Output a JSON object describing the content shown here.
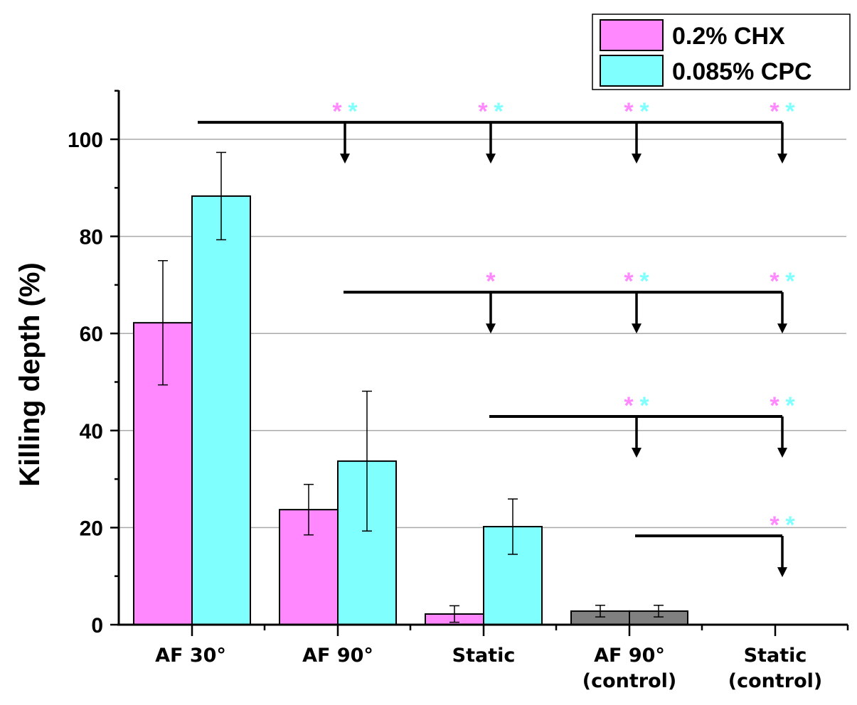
{
  "chart_data": {
    "type": "bar",
    "title": "",
    "xlabel": "",
    "ylabel": "Killing depth (%)",
    "ylim": [
      0,
      110
    ],
    "yticks": [
      0,
      20,
      40,
      60,
      80,
      100
    ],
    "grid": true,
    "legend_position": "top-right",
    "categories": [
      [
        "AF 30°"
      ],
      [
        "AF 90°"
      ],
      [
        "Static"
      ],
      [
        "AF 90°",
        "(control)"
      ],
      [
        "Static",
        "(control)"
      ]
    ],
    "series": [
      {
        "name": "0.2% CHX",
        "color": "#ff88ff",
        "values": [
          62.2,
          23.7,
          2.2,
          2.8,
          0
        ],
        "errors": [
          12.8,
          5.2,
          1.7,
          1.2,
          0
        ]
      },
      {
        "name": "0.085% CPC",
        "color": "#80ffff",
        "values": [
          88.3,
          33.7,
          20.2,
          2.8,
          0
        ],
        "errors": [
          9.0,
          14.4,
          5.7,
          1.2,
          0
        ]
      }
    ],
    "control_color": "#808080",
    "significance": [
      {
        "from": 0,
        "level": 103.5,
        "tip": 95,
        "targets": [
          {
            "group": 1,
            "stars": [
              "*",
              "*"
            ]
          },
          {
            "group": 2,
            "stars": [
              "*",
              "*"
            ]
          },
          {
            "group": 3,
            "stars": [
              "*",
              "*"
            ]
          },
          {
            "group": 4,
            "stars": [
              "*",
              "*"
            ]
          }
        ]
      },
      {
        "from": 1,
        "level": 68.5,
        "tip": 60,
        "targets": [
          {
            "group": 2,
            "stars": [
              "*"
            ]
          },
          {
            "group": 3,
            "stars": [
              "*",
              "*"
            ]
          },
          {
            "group": 4,
            "stars": [
              "*",
              "*"
            ]
          }
        ]
      },
      {
        "from": 2,
        "level": 42.9,
        "tip": 34.4,
        "targets": [
          {
            "group": 3,
            "stars": [
              "*",
              "*"
            ]
          },
          {
            "group": 4,
            "stars": [
              "*",
              "*"
            ]
          }
        ]
      },
      {
        "from": 3,
        "level": 18.3,
        "tip": 9.8,
        "targets": [
          {
            "group": 4,
            "stars": [
              "*",
              "*"
            ]
          }
        ]
      }
    ]
  }
}
